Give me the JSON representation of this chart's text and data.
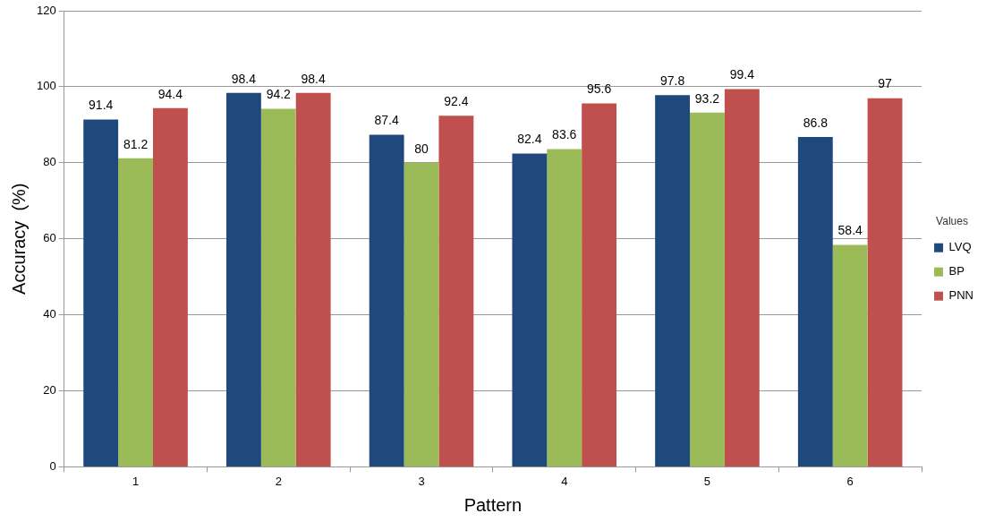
{
  "chart_data": {
    "type": "bar",
    "xlabel": "Pattern",
    "ylabel": "Accuracy  (%)",
    "legend_title": "Values",
    "categories": [
      "1",
      "2",
      "3",
      "4",
      "5",
      "6"
    ],
    "series": [
      {
        "name": "LVQ",
        "color": "#1f497d",
        "values": [
          91.4,
          98.4,
          87.4,
          82.4,
          97.8,
          86.8
        ]
      },
      {
        "name": "BP",
        "color": "#9bbb59",
        "values": [
          81.2,
          94.2,
          80,
          83.6,
          93.2,
          58.4
        ]
      },
      {
        "name": "PNN",
        "color": "#c0504d",
        "values": [
          94.4,
          98.4,
          92.4,
          95.6,
          99.4,
          97
        ]
      }
    ],
    "ylim": [
      0,
      120
    ],
    "yticks": [
      0,
      20,
      40,
      60,
      80,
      100,
      120
    ],
    "grid": "y",
    "legend": "right",
    "data_labels": true
  }
}
